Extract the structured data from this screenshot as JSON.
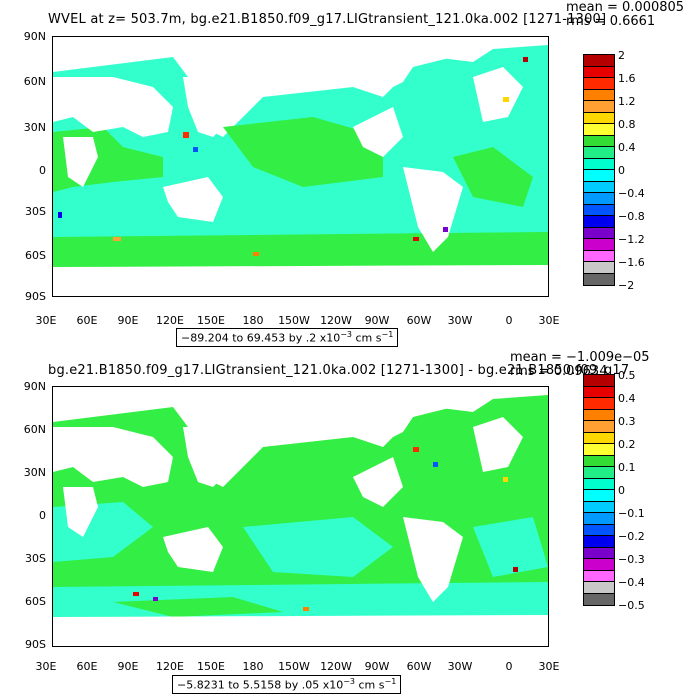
{
  "panels": [
    {
      "title": "WVEL at z= 503.7m, bg.e21.B1850.f09_g17.LIGtransient_121.0ka.002 [1271-1300]",
      "mean": "mean = 0.000805",
      "rms": "rms = 0.6661",
      "range": "−89.204 to 69.453 by .2 x10",
      "range_exp": "−3",
      "range_unit": " cm s",
      "range_unit_exp": "−1",
      "colorbar": {
        "labels": [
          "2",
          "1.6",
          "1.2",
          "0.8",
          "0.4",
          "0",
          "−0.4",
          "−0.8",
          "−1.2",
          "−1.6",
          "−2"
        ],
        "colors": [
          "#b40000",
          "#e60000",
          "#ff2a00",
          "#ff7f00",
          "#ffa033",
          "#ffd700",
          "#ffff33",
          "#33dd33",
          "#22ee88",
          "#00ffcc",
          "#00ffff",
          "#00ccff",
          "#0099ff",
          "#0055ff",
          "#0000ee",
          "#7a00cc",
          "#cc00cc",
          "#ff66ff",
          "#c8c8c8",
          "#666666"
        ]
      },
      "dominant_color": "#33ffcc",
      "secondary_color": "#33ee44"
    },
    {
      "title": "bg.e21.B1850.f09_g17.LIGtransient_121.0ka.002 [1271-1300] - bg.e21.B1850.f09_g17",
      "mean": "mean = −1.009e−05",
      "rms": "rms = 0.09634",
      "range": "−5.8231 to 5.5158 by .05 x10",
      "range_exp": "−3",
      "range_unit": " cm s",
      "range_unit_exp": "−1",
      "colorbar": {
        "labels": [
          "0.5",
          "0.4",
          "0.3",
          "0.2",
          "0.1",
          "0",
          "−0.1",
          "−0.2",
          "−0.3",
          "−0.4",
          "−0.5"
        ],
        "colors": [
          "#b40000",
          "#e60000",
          "#ff2a00",
          "#ff7f00",
          "#ffa033",
          "#ffd700",
          "#ffff33",
          "#33dd33",
          "#22ee88",
          "#00ffcc",
          "#00ffff",
          "#00ccff",
          "#0099ff",
          "#0055ff",
          "#0000ee",
          "#7a00cc",
          "#cc00cc",
          "#ff66ff",
          "#c8c8c8",
          "#666666"
        ]
      },
      "dominant_color": "#33ee44",
      "secondary_color": "#33ffcc"
    }
  ],
  "axes": {
    "lat_labels": [
      "90N",
      "60N",
      "30N",
      "0",
      "30S",
      "60S",
      "90S"
    ],
    "lon_labels": [
      "30E",
      "60E",
      "90E",
      "120E",
      "150E",
      "180",
      "150W",
      "120W",
      "90W",
      "60W",
      "30W",
      "0",
      "30E"
    ]
  }
}
